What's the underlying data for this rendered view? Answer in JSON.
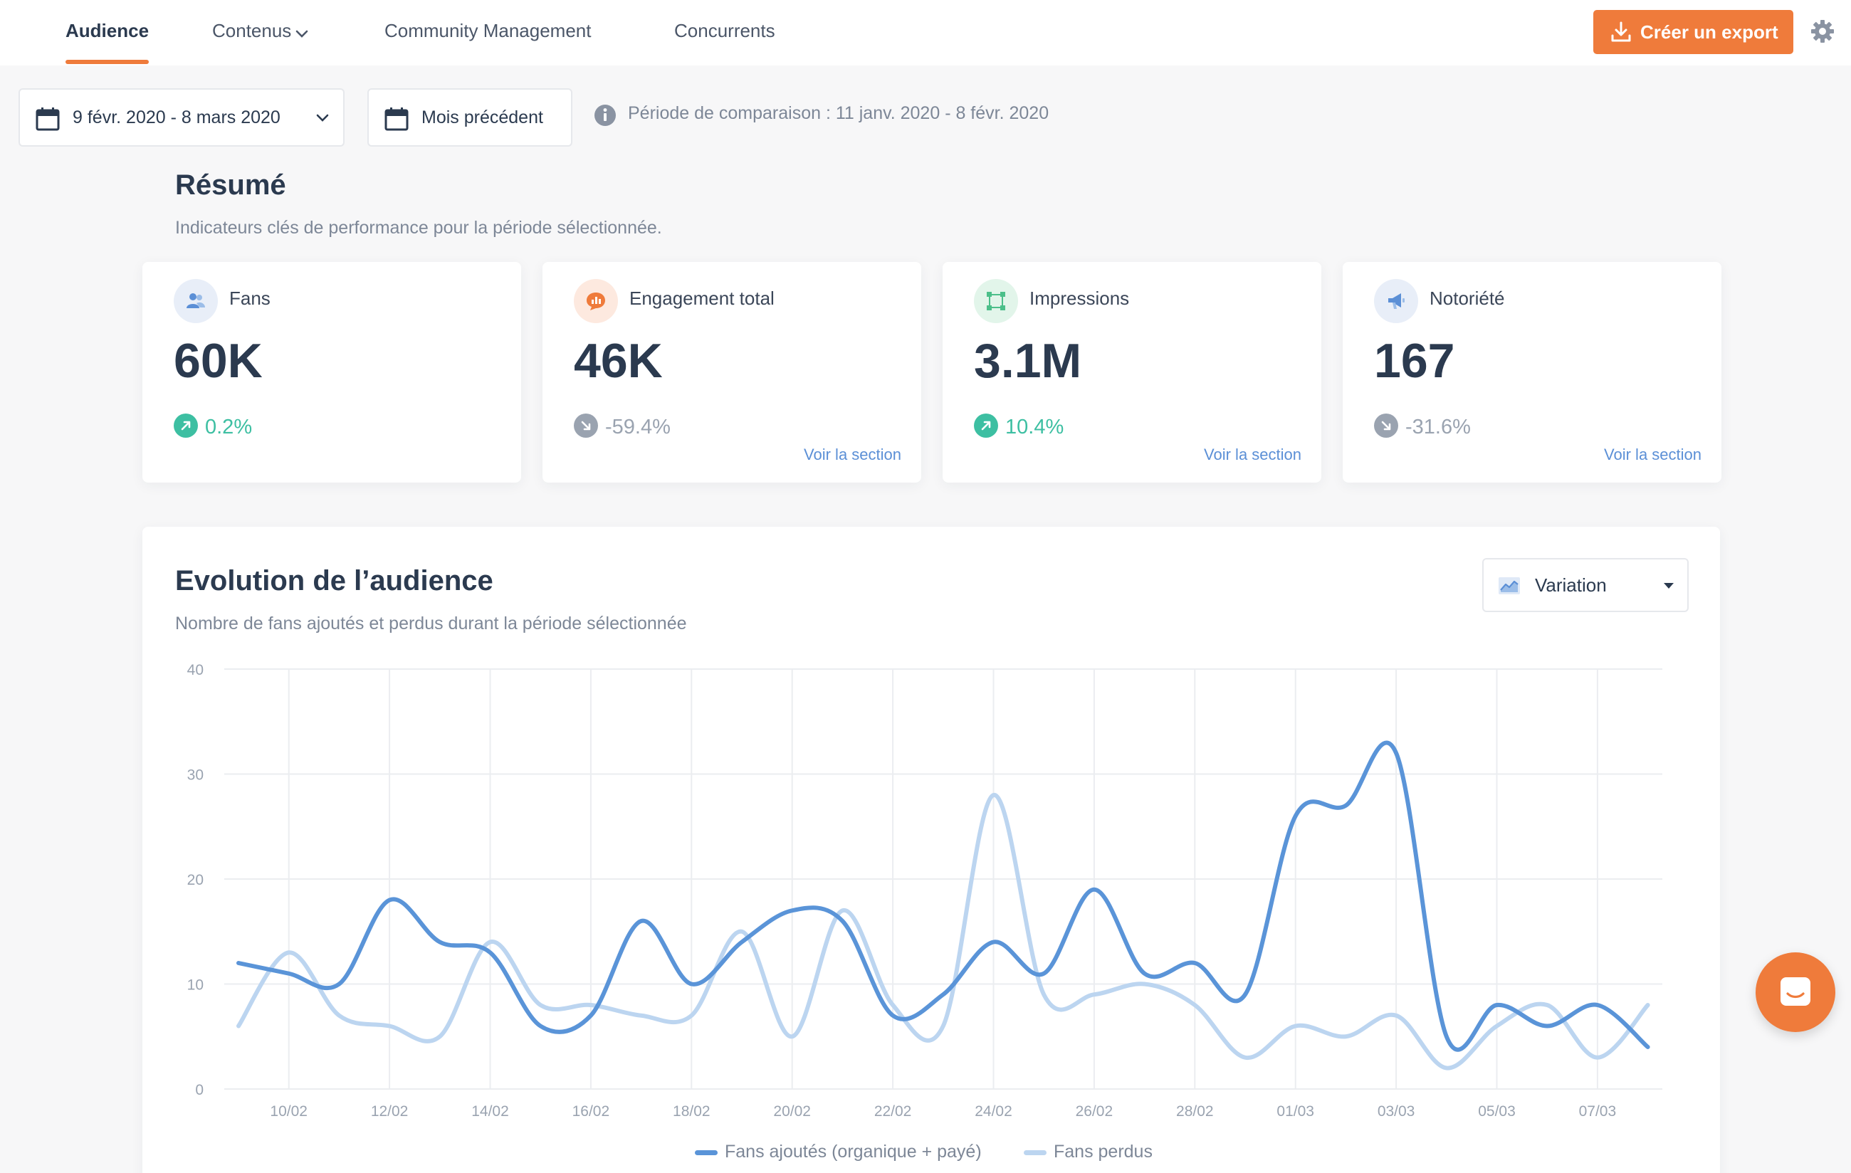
{
  "nav": {
    "tabs": [
      "Audience",
      "Contenus",
      "Community Management",
      "Concurrents"
    ],
    "export_label": "Créer un export"
  },
  "filters": {
    "date_range": "9 févr. 2020 - 8 mars 2020",
    "comparison_mode": "Mois précédent",
    "comparison_text": "Période de comparaison : 11 janv. 2020 - 8 févr. 2020"
  },
  "resume": {
    "title": "Résumé",
    "subtitle": "Indicateurs clés de performance pour la période sélectionnée.",
    "link_label": "Voir la section",
    "cards": [
      {
        "label": "Fans",
        "value": "60K",
        "trend": "0.2%",
        "direction": "up",
        "color": "#5b8fd6",
        "icon": "users-icon"
      },
      {
        "label": "Engagement total",
        "value": "46K",
        "trend": "-59.4%",
        "direction": "down",
        "color": "#ef7b3b",
        "icon": "chat-chart-icon"
      },
      {
        "label": "Impressions",
        "value": "3.1M",
        "trend": "10.4%",
        "direction": "up",
        "color": "#4cbf8a",
        "icon": "frame-icon"
      },
      {
        "label": "Notoriété",
        "value": "167",
        "trend": "-31.6%",
        "direction": "down",
        "color": "#5b8fd6",
        "icon": "megaphone-icon"
      }
    ]
  },
  "audience": {
    "title": "Evolution de l’audience",
    "subtitle": "Nombre de fans ajoutés et perdus durant la période sélectionnée",
    "view_select": "Variation"
  },
  "colors": {
    "accent": "#ef7b3b",
    "positive": "#3dbfa2",
    "negative": "#9aa3b0",
    "series_main": "#5a94d8",
    "series_light": "#bcd5f0"
  },
  "chart_data": {
    "type": "line",
    "title": "",
    "xlabel": "",
    "ylabel": "",
    "ylim": [
      0,
      40
    ],
    "yticks": [
      "0",
      "10",
      "20",
      "30",
      "40"
    ],
    "x_tick_labels": [
      "10/02",
      "12/02",
      "14/02",
      "16/02",
      "18/02",
      "20/02",
      "22/02",
      "24/02",
      "26/02",
      "28/02",
      "01/03",
      "03/03",
      "05/03",
      "07/03"
    ],
    "categories": [
      "09/02",
      "10/02",
      "11/02",
      "12/02",
      "13/02",
      "14/02",
      "15/02",
      "16/02",
      "17/02",
      "18/02",
      "19/02",
      "20/02",
      "21/02",
      "22/02",
      "23/02",
      "24/02",
      "25/02",
      "26/02",
      "27/02",
      "28/02",
      "29/02",
      "01/03",
      "02/03",
      "03/03",
      "04/03",
      "05/03",
      "06/03",
      "07/03",
      "08/03"
    ],
    "series": [
      {
        "name": "Fans ajoutés (organique + payé)",
        "values": [
          12,
          11,
          10,
          18,
          14,
          13,
          6,
          7,
          16,
          10,
          14,
          17,
          16,
          7,
          9,
          14,
          11,
          19,
          11,
          12,
          9,
          26,
          27,
          32,
          5,
          8,
          6,
          8,
          4
        ]
      },
      {
        "name": "Fans perdus",
        "values": [
          6,
          13,
          7,
          6,
          5,
          14,
          8,
          8,
          7,
          7,
          15,
          5,
          17,
          8,
          6,
          28,
          9,
          9,
          10,
          8,
          3,
          6,
          5,
          7,
          2,
          6,
          8,
          3,
          8
        ]
      }
    ],
    "grid": true,
    "legend": "bottom-center"
  }
}
